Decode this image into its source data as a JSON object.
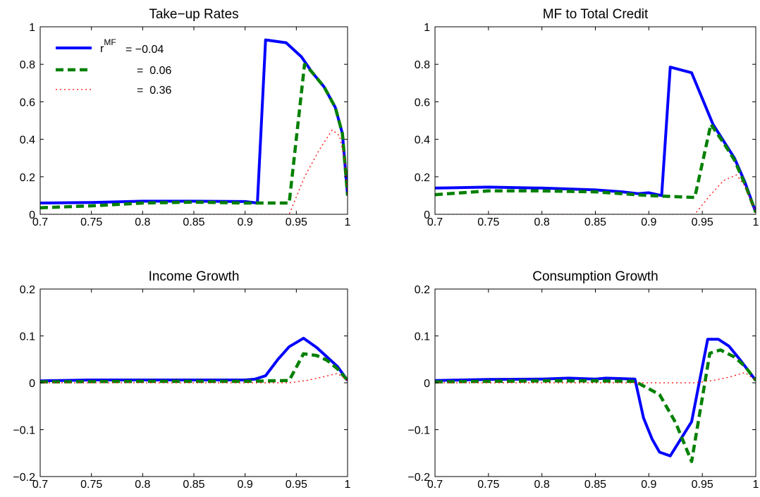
{
  "chart_data": [
    {
      "type": "line",
      "title": "Take−up Rates",
      "xlim": [
        0.7,
        1
      ],
      "ylim": [
        0,
        1
      ],
      "xticks": [
        "0.7",
        "0.75",
        "0.8",
        "0.85",
        "0.9",
        "0.95",
        "1"
      ],
      "yticks": [
        "0",
        "0.2",
        "0.4",
        "0.6",
        "0.8",
        "1"
      ],
      "grid": false,
      "legend": {
        "placement": "top-left",
        "prefix": "r",
        "superscript": "MF",
        "entries": [
          "= −0.04",
          "=  0.06",
          "=  0.36"
        ]
      },
      "series": [
        {
          "style": "solid",
          "color": "#0000ff",
          "points": [
            [
              0.7,
              0.06
            ],
            [
              0.75,
              0.063
            ],
            [
              0.8,
              0.07
            ],
            [
              0.85,
              0.07
            ],
            [
              0.9,
              0.068
            ],
            [
              0.912,
              0.06
            ],
            [
              0.92,
              0.93
            ],
            [
              0.94,
              0.915
            ],
            [
              0.955,
              0.84
            ],
            [
              0.965,
              0.76
            ],
            [
              0.977,
              0.68
            ],
            [
              0.988,
              0.57
            ],
            [
              0.995,
              0.43
            ],
            [
              1.0,
              0.1
            ]
          ]
        },
        {
          "style": "dashed",
          "color": "#008000",
          "points": [
            [
              0.7,
              0.035
            ],
            [
              0.75,
              0.045
            ],
            [
              0.8,
              0.06
            ],
            [
              0.85,
              0.065
            ],
            [
              0.9,
              0.06
            ],
            [
              0.943,
              0.06
            ],
            [
              0.958,
              0.8
            ],
            [
              0.965,
              0.76
            ],
            [
              0.977,
              0.68
            ],
            [
              0.988,
              0.57
            ],
            [
              0.995,
              0.43
            ],
            [
              1.0,
              0.1
            ]
          ]
        },
        {
          "style": "dotted",
          "color": "#ff0000",
          "points": [
            [
              0.7,
              0.0
            ],
            [
              0.943,
              0.0
            ],
            [
              0.958,
              0.2
            ],
            [
              0.972,
              0.34
            ],
            [
              0.985,
              0.45
            ],
            [
              0.992,
              0.42
            ],
            [
              0.997,
              0.3
            ],
            [
              1.0,
              0.1
            ]
          ]
        }
      ]
    },
    {
      "type": "line",
      "title": "MF to Total Credit",
      "xlim": [
        0.7,
        1
      ],
      "ylim": [
        0,
        1
      ],
      "xticks": [
        "0.7",
        "0.75",
        "0.8",
        "0.85",
        "0.9",
        "0.95",
        "1"
      ],
      "yticks": [
        "0",
        "0.2",
        "0.4",
        "0.6",
        "0.8",
        "1"
      ],
      "grid": false,
      "series": [
        {
          "style": "solid",
          "color": "#0000ff",
          "points": [
            [
              0.7,
              0.14
            ],
            [
              0.75,
              0.145
            ],
            [
              0.8,
              0.14
            ],
            [
              0.85,
              0.13
            ],
            [
              0.875,
              0.12
            ],
            [
              0.89,
              0.11
            ],
            [
              0.9,
              0.115
            ],
            [
              0.912,
              0.1
            ],
            [
              0.92,
              0.785
            ],
            [
              0.94,
              0.755
            ],
            [
              0.96,
              0.48
            ],
            [
              0.98,
              0.3
            ],
            [
              0.99,
              0.17
            ],
            [
              1.0,
              0.01
            ]
          ]
        },
        {
          "style": "dashed",
          "color": "#008000",
          "points": [
            [
              0.7,
              0.105
            ],
            [
              0.75,
              0.125
            ],
            [
              0.8,
              0.125
            ],
            [
              0.85,
              0.12
            ],
            [
              0.9,
              0.1
            ],
            [
              0.943,
              0.09
            ],
            [
              0.958,
              0.48
            ],
            [
              0.97,
              0.38
            ],
            [
              0.98,
              0.29
            ],
            [
              0.99,
              0.16
            ],
            [
              1.0,
              0.01
            ]
          ]
        },
        {
          "style": "dotted",
          "color": "#ff0000",
          "points": [
            [
              0.7,
              0.0
            ],
            [
              0.943,
              0.0
            ],
            [
              0.957,
              0.1
            ],
            [
              0.97,
              0.18
            ],
            [
              0.982,
              0.21
            ],
            [
              0.99,
              0.15
            ],
            [
              1.0,
              0.01
            ]
          ]
        }
      ]
    },
    {
      "type": "line",
      "title": "Income Growth",
      "xlim": [
        0.7,
        1
      ],
      "ylim": [
        -0.2,
        0.2
      ],
      "xticks": [
        "0.7",
        "0.75",
        "0.8",
        "0.85",
        "0.9",
        "0.95",
        "1"
      ],
      "yticks": [
        "−0.2",
        "−0.1",
        "0",
        "0.1",
        "0.2"
      ],
      "grid": false,
      "series": [
        {
          "style": "solid",
          "color": "#0000ff",
          "points": [
            [
              0.7,
              0.004
            ],
            [
              0.75,
              0.006
            ],
            [
              0.8,
              0.006
            ],
            [
              0.85,
              0.006
            ],
            [
              0.9,
              0.006
            ],
            [
              0.91,
              0.008
            ],
            [
              0.92,
              0.015
            ],
            [
              0.932,
              0.05
            ],
            [
              0.943,
              0.077
            ],
            [
              0.957,
              0.095
            ],
            [
              0.97,
              0.075
            ],
            [
              0.98,
              0.055
            ],
            [
              0.99,
              0.035
            ],
            [
              1.0,
              0.005
            ]
          ]
        },
        {
          "style": "dashed",
          "color": "#008000",
          "points": [
            [
              0.7,
              0.002
            ],
            [
              0.8,
              0.003
            ],
            [
              0.9,
              0.003
            ],
            [
              0.943,
              0.005
            ],
            [
              0.957,
              0.062
            ],
            [
              0.97,
              0.058
            ],
            [
              0.98,
              0.048
            ],
            [
              0.99,
              0.03
            ],
            [
              1.0,
              0.005
            ]
          ]
        },
        {
          "style": "dotted",
          "color": "#ff0000",
          "points": [
            [
              0.7,
              0.0
            ],
            [
              0.943,
              0.0
            ],
            [
              0.96,
              0.005
            ],
            [
              0.975,
              0.012
            ],
            [
              0.99,
              0.02
            ],
            [
              1.0,
              0.005
            ]
          ]
        }
      ]
    },
    {
      "type": "line",
      "title": "Consumption Growth",
      "xlim": [
        0.7,
        1
      ],
      "ylim": [
        -0.2,
        0.2
      ],
      "xticks": [
        "0.7",
        "0.75",
        "0.8",
        "0.85",
        "0.9",
        "0.95",
        "1"
      ],
      "yticks": [
        "−0.2",
        "−0.1",
        "0",
        "0.1",
        "0.2"
      ],
      "grid": false,
      "series": [
        {
          "style": "solid",
          "color": "#0000ff",
          "points": [
            [
              0.7,
              0.005
            ],
            [
              0.75,
              0.007
            ],
            [
              0.8,
              0.008
            ],
            [
              0.825,
              0.01
            ],
            [
              0.85,
              0.008
            ],
            [
              0.86,
              0.01
            ],
            [
              0.887,
              0.008
            ],
            [
              0.895,
              -0.075
            ],
            [
              0.903,
              -0.12
            ],
            [
              0.91,
              -0.148
            ],
            [
              0.92,
              -0.156
            ],
            [
              0.94,
              -0.083
            ],
            [
              0.955,
              0.093
            ],
            [
              0.965,
              0.093
            ],
            [
              0.975,
              0.078
            ],
            [
              0.985,
              0.05
            ],
            [
              1.0,
              0.005
            ]
          ]
        },
        {
          "style": "dashed",
          "color": "#008000",
          "points": [
            [
              0.7,
              0.002
            ],
            [
              0.8,
              0.004
            ],
            [
              0.85,
              0.004
            ],
            [
              0.887,
              0.003
            ],
            [
              0.91,
              -0.025
            ],
            [
              0.925,
              -0.085
            ],
            [
              0.94,
              -0.168
            ],
            [
              0.957,
              0.063
            ],
            [
              0.967,
              0.07
            ],
            [
              0.98,
              0.055
            ],
            [
              0.99,
              0.035
            ],
            [
              1.0,
              0.005
            ]
          ]
        },
        {
          "style": "dotted",
          "color": "#ff0000",
          "points": [
            [
              0.7,
              0.0
            ],
            [
              0.943,
              0.0
            ],
            [
              0.96,
              0.005
            ],
            [
              0.975,
              0.012
            ],
            [
              0.99,
              0.022
            ],
            [
              1.0,
              0.005
            ]
          ]
        }
      ]
    }
  ]
}
